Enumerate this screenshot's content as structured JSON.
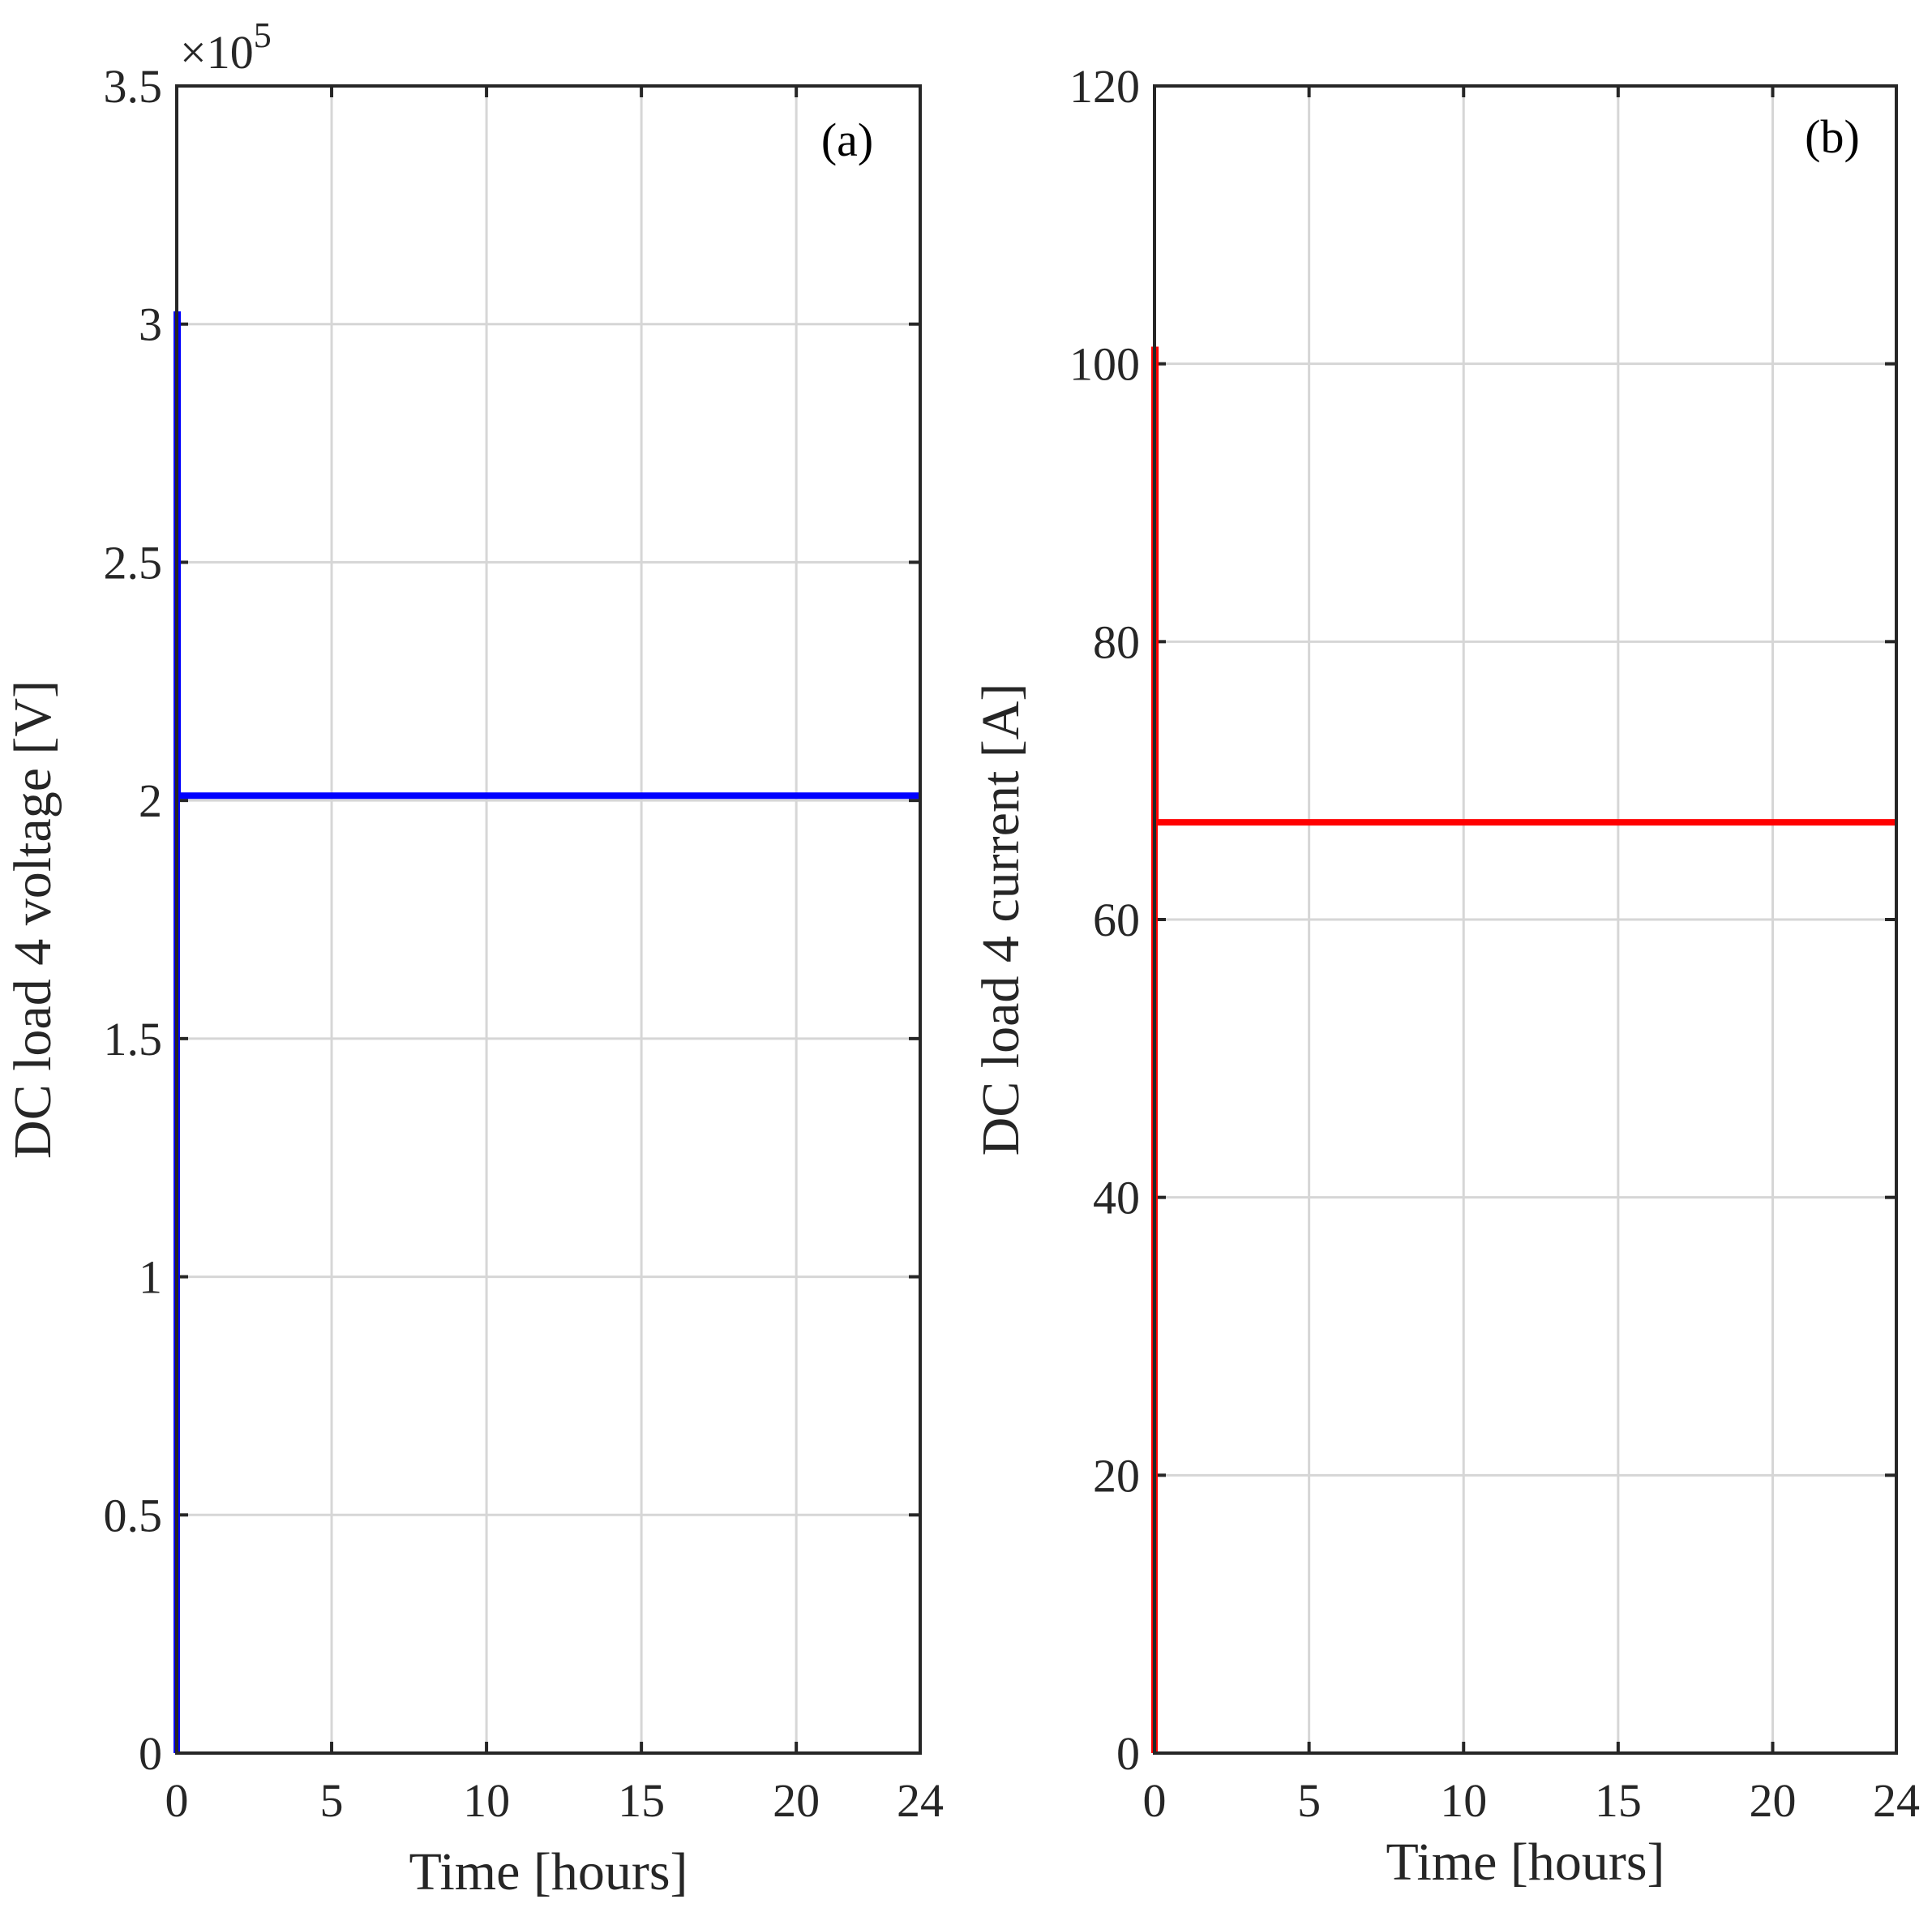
{
  "chart_data": [
    {
      "type": "line",
      "panel_label": "(a)",
      "xlabel": "Time [hours]",
      "ylabel": "DC load 4 voltage [V]",
      "y_exponent_label": {
        "prefix": "×10",
        "power": "5"
      },
      "xlim": [
        0,
        24
      ],
      "ylim": [
        0,
        3.5
      ],
      "x_ticks": [
        {
          "value": 0,
          "label": "0"
        },
        {
          "value": 5,
          "label": "5"
        },
        {
          "value": 10,
          "label": "10"
        },
        {
          "value": 15,
          "label": "15"
        },
        {
          "value": 20,
          "label": "20"
        },
        {
          "value": 24,
          "label": "24"
        }
      ],
      "y_ticks": [
        {
          "value": 0,
          "label": "0"
        },
        {
          "value": 0.5,
          "label": "0.5"
        },
        {
          "value": 1,
          "label": "1"
        },
        {
          "value": 1.5,
          "label": "1.5"
        },
        {
          "value": 2,
          "label": "2"
        },
        {
          "value": 2.5,
          "label": "2.5"
        },
        {
          "value": 3,
          "label": "3"
        },
        {
          "value": 3.5,
          "label": "3.5"
        }
      ],
      "grid": true,
      "series": [
        {
          "color": "#0000ff",
          "x": [
            0,
            0,
            0.03,
            0.03,
            24
          ],
          "y": [
            0,
            3.02,
            3.02,
            2.01,
            2.01
          ]
        }
      ]
    },
    {
      "type": "line",
      "panel_label": "(b)",
      "xlabel": "Time [hours]",
      "ylabel": "DC load 4 current [A]",
      "xlim": [
        0,
        24
      ],
      "ylim": [
        0,
        120
      ],
      "x_ticks": [
        {
          "value": 0,
          "label": "0"
        },
        {
          "value": 5,
          "label": "5"
        },
        {
          "value": 10,
          "label": "10"
        },
        {
          "value": 15,
          "label": "15"
        },
        {
          "value": 20,
          "label": "20"
        },
        {
          "value": 24,
          "label": "24"
        }
      ],
      "y_ticks": [
        {
          "value": 0,
          "label": "0"
        },
        {
          "value": 20,
          "label": "20"
        },
        {
          "value": 40,
          "label": "40"
        },
        {
          "value": 60,
          "label": "60"
        },
        {
          "value": 80,
          "label": "80"
        },
        {
          "value": 100,
          "label": "100"
        },
        {
          "value": 120,
          "label": "120"
        }
      ],
      "grid": true,
      "series": [
        {
          "color": "#ff0000",
          "x": [
            0,
            0,
            0.03,
            0.03,
            24
          ],
          "y": [
            0,
            101,
            101,
            67,
            67
          ]
        }
      ]
    }
  ]
}
